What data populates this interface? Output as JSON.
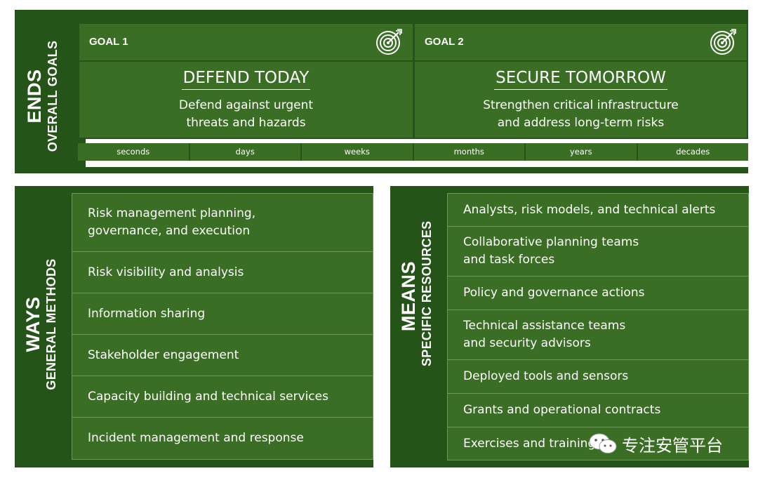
{
  "ends": {
    "title": "ENDS",
    "subtitle": "OVERALL GOALS",
    "goals": [
      {
        "label": "GOAL 1",
        "title": "DEFEND TODAY",
        "description": "Defend against urgent\nthreats and hazards",
        "icon": "target-icon"
      },
      {
        "label": "GOAL 2",
        "title": "SECURE TOMORROW",
        "description": "Strengthen critical infrastructure\nand address long-term risks",
        "icon": "target-icon"
      }
    ],
    "timeline": [
      "seconds",
      "days",
      "weeks",
      "months",
      "years",
      "decades"
    ]
  },
  "ways": {
    "title": "WAYS",
    "subtitle": "GENERAL METHODS",
    "items": [
      "Risk management planning,\ngovernance, and execution",
      "Risk visibility and analysis",
      "Information sharing",
      "Stakeholder engagement",
      "Capacity building and technical services",
      "Incident management and response"
    ]
  },
  "means": {
    "title": "MEANS",
    "subtitle": "SPECIFIC RESOURCES",
    "items": [
      "Analysts, risk models, and technical alerts",
      "Collaborative planning teams\nand task forces",
      "Policy and governance actions",
      "Technical assistance teams\nand security advisors",
      "Deployed tools and sensors",
      "Grants and operational contracts",
      "Exercises and training"
    ]
  },
  "watermark": {
    "text": "专注安管平台",
    "icon": "wechat-icon"
  },
  "colors": {
    "dark_green": "#245418",
    "box_green": "#3a6e25",
    "text": "#ffffff"
  }
}
